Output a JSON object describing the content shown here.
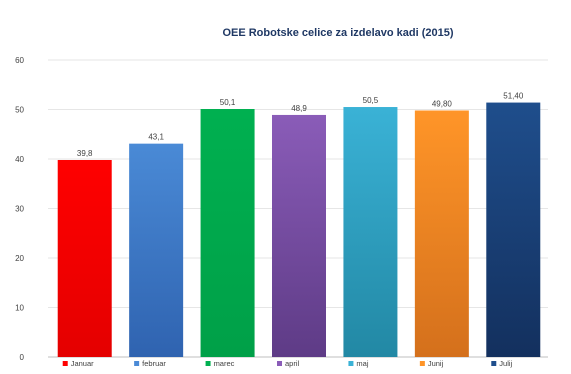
{
  "chart_data": {
    "type": "bar",
    "title": "OEE Robotske celice za izdelavo kadi (2015)",
    "categories": [
      "januar",
      "februar",
      "marec",
      "april",
      "maj",
      "junij",
      "julij"
    ],
    "values": [
      39.8,
      43.1,
      50.1,
      48.9,
      50.5,
      49.8,
      51.4
    ],
    "data_labels": [
      "39,8",
      "43,1",
      "50,1",
      "48,9",
      "50,5",
      "49,80",
      "51,40"
    ],
    "legend_labels": [
      "Januar",
      "februar",
      "marec",
      "april",
      "maj",
      "Junij",
      "Julij"
    ],
    "colors": [
      [
        "#ff0000",
        "#e40000"
      ],
      [
        "#4a8ad6",
        "#2f63b0"
      ],
      [
        "#00b050",
        "#00a048"
      ],
      [
        "#8a5cb8",
        "#5e3b86"
      ],
      [
        "#3ab2d6",
        "#2288a4"
      ],
      [
        "#ff9528",
        "#d4701c"
      ],
      [
        "#1f4e8c",
        "#13305e"
      ]
    ],
    "ylim": [
      0,
      60
    ],
    "yticks": [
      0,
      10,
      20,
      30,
      40,
      50,
      60
    ],
    "grid": true,
    "legend": "bottom"
  }
}
